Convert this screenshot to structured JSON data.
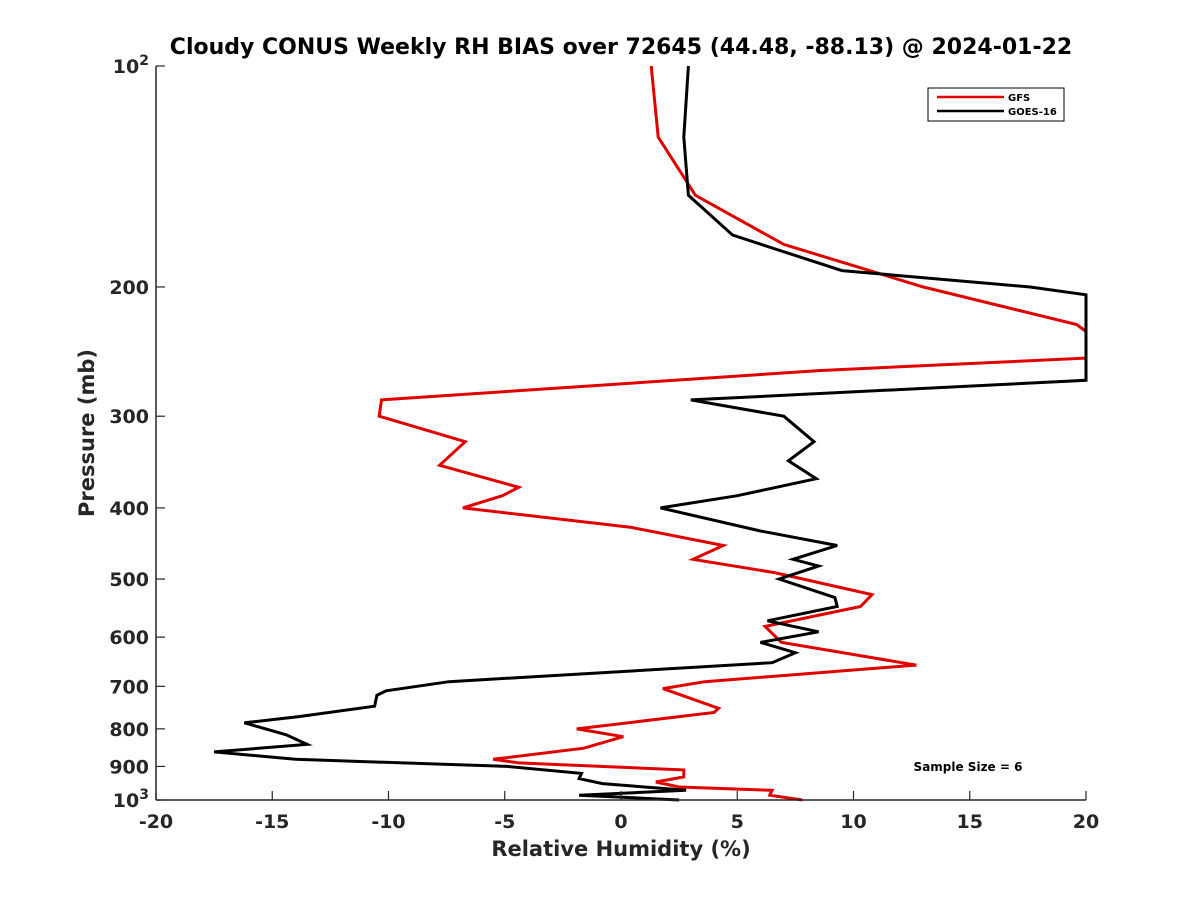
{
  "chart_data": {
    "type": "line",
    "title": "Cloudy CONUS Weekly RH BIAS over 72645 (44.48, -88.13) @ 2024-01-22",
    "xlabel": "Relative Humidity (%)",
    "ylabel": "Pressure (mb)",
    "xlim": [
      -20,
      20
    ],
    "ylim": [
      1000,
      100
    ],
    "y_scale": "log",
    "y_reversed": true,
    "grid": false,
    "legend_position": "top-right",
    "x_ticks": [
      "-20",
      "-15",
      "-10",
      "-5",
      "0",
      "5",
      "10",
      "15",
      "20"
    ],
    "y_ticks": [
      {
        "value": 100,
        "base": "10",
        "exp": "2"
      },
      {
        "value": 200,
        "label": "200"
      },
      {
        "value": 300,
        "label": "300"
      },
      {
        "value": 400,
        "label": "400"
      },
      {
        "value": 500,
        "label": "500"
      },
      {
        "value": 600,
        "label": "600"
      },
      {
        "value": 700,
        "label": "700"
      },
      {
        "value": 800,
        "label": "800"
      },
      {
        "value": 900,
        "label": "900"
      },
      {
        "value": 1000,
        "base": "10",
        "exp": "3"
      }
    ],
    "annotation": "Sample Size = 6",
    "series": [
      {
        "name": "GFS",
        "color": "#e00000",
        "points": [
          [
            1.3,
            100
          ],
          [
            1.6,
            125
          ],
          [
            3.2,
            150
          ],
          [
            7.0,
            175
          ],
          [
            13.0,
            200
          ],
          [
            19.6,
            225
          ],
          [
            20.0,
            230
          ],
          [
            20.0,
            250
          ],
          [
            8.5,
            260
          ],
          [
            -10.3,
            285
          ],
          [
            -10.4,
            300
          ],
          [
            -6.7,
            325
          ],
          [
            -7.8,
            350
          ],
          [
            -4.4,
            375
          ],
          [
            -5.1,
            385
          ],
          [
            -6.8,
            400
          ],
          [
            0.4,
            425
          ],
          [
            4.4,
            450
          ],
          [
            3.1,
            470
          ],
          [
            6.6,
            490
          ],
          [
            10.8,
            525
          ],
          [
            10.3,
            545
          ],
          [
            6.2,
            580
          ],
          [
            6.9,
            610
          ],
          [
            12.7,
            655
          ],
          [
            3.6,
            690
          ],
          [
            1.8,
            705
          ],
          [
            4.2,
            750
          ],
          [
            4.0,
            760
          ],
          [
            -1.9,
            800
          ],
          [
            0.1,
            820
          ],
          [
            -1.6,
            850
          ],
          [
            -5.5,
            880
          ],
          [
            -4.4,
            890
          ],
          [
            2.7,
            910
          ],
          [
            2.7,
            930
          ],
          [
            1.5,
            945
          ],
          [
            2.5,
            960
          ],
          [
            6.5,
            970
          ],
          [
            6.4,
            985
          ],
          [
            7.8,
            1000
          ]
        ]
      },
      {
        "name": "GOES-16",
        "color": "#000000",
        "points": [
          [
            2.9,
            100
          ],
          [
            2.7,
            125
          ],
          [
            2.9,
            150
          ],
          [
            4.8,
            170
          ],
          [
            9.5,
            190
          ],
          [
            17.6,
            200
          ],
          [
            20.0,
            205
          ],
          [
            20.0,
            268
          ],
          [
            3.0,
            285
          ],
          [
            7.0,
            300
          ],
          [
            8.3,
            325
          ],
          [
            7.2,
            345
          ],
          [
            8.4,
            365
          ],
          [
            5.0,
            385
          ],
          [
            1.7,
            400
          ],
          [
            6.0,
            430
          ],
          [
            9.3,
            450
          ],
          [
            7.4,
            470
          ],
          [
            8.5,
            480
          ],
          [
            6.8,
            500
          ],
          [
            9.2,
            530
          ],
          [
            9.3,
            545
          ],
          [
            6.3,
            570
          ],
          [
            8.5,
            590
          ],
          [
            6.0,
            610
          ],
          [
            7.5,
            630
          ],
          [
            6.5,
            650
          ],
          [
            -7.4,
            690
          ],
          [
            -10.1,
            710
          ],
          [
            -10.5,
            720
          ],
          [
            -10.6,
            745
          ],
          [
            -13.9,
            770
          ],
          [
            -16.2,
            785
          ],
          [
            -14.4,
            815
          ],
          [
            -13.5,
            840
          ],
          [
            -17.5,
            860
          ],
          [
            -14.0,
            880
          ],
          [
            -4.9,
            900
          ],
          [
            -1.7,
            920
          ],
          [
            -1.8,
            935
          ],
          [
            -0.8,
            950
          ],
          [
            2.8,
            970
          ],
          [
            -1.8,
            985
          ],
          [
            2.5,
            1000
          ]
        ]
      }
    ]
  }
}
